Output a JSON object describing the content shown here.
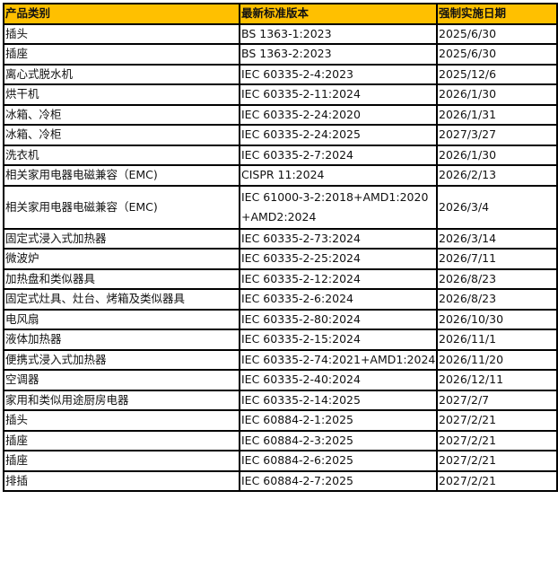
{
  "header": {
    "category": "产品类别",
    "standard": "最新标准版本",
    "date": "强制实施日期",
    "header_color": "#ffc000"
  },
  "rows": [
    {
      "category": "插头",
      "standard": "BS 1363-1:2023",
      "date": "2025/6/30"
    },
    {
      "category": "插座",
      "standard": "BS 1363-2:2023",
      "date": "2025/6/30"
    },
    {
      "category": "离心式脱水机",
      "standard": "IEC 60335-2-4:2023",
      "date": "2025/12/6"
    },
    {
      "category": "烘干机",
      "standard": "IEC 60335-2-11:2024",
      "date": "2026/1/30"
    },
    {
      "category": "冰箱、冷柜",
      "standard": "IEC 60335-2-24:2020",
      "date": "2026/1/31"
    },
    {
      "category": "冰箱、冷柜",
      "standard": "IEC 60335-2-24:2025",
      "date": "2027/3/27"
    },
    {
      "category": "洗衣机",
      "standard": "IEC 60335-2-7:2024",
      "date": "2026/1/30"
    },
    {
      "category": "相关家用电器电磁兼容（EMC)",
      "standard": "CISPR 11:2024",
      "date": "2026/2/13"
    },
    {
      "category": "相关家用电器电磁兼容（EMC)",
      "standard": "IEC 61000-3-2:2018+AMD1:2020+AMD2:2024",
      "date": "2026/3/4"
    },
    {
      "category": "固定式浸入式加热器",
      "standard": "IEC 60335-2-73:2024",
      "date": "2026/3/14"
    },
    {
      "category": "微波炉",
      "standard": "IEC 60335-2-25:2024",
      "date": "2026/7/11"
    },
    {
      "category": "加热盘和类似器具",
      "standard": "IEC 60335-2-12:2024",
      "date": "2026/8/23"
    },
    {
      "category": "固定式灶具、灶台、烤箱及类似器具",
      "standard": "IEC 60335-2-6:2024",
      "date": "2026/8/23"
    },
    {
      "category": "电风扇",
      "standard": "IEC 60335-2-80:2024",
      "date": "2026/10/30"
    },
    {
      "category": "液体加热器",
      "standard": "IEC 60335-2-15:2024",
      "date": "2026/11/1"
    },
    {
      "category": "便携式浸入式加热器",
      "standard": "IEC 60335-2-74:2021+AMD1:2024",
      "date": "2026/11/20"
    },
    {
      "category": "空调器",
      "standard": "IEC 60335-2-40:2024",
      "date": "2026/12/11"
    },
    {
      "category": "家用和类似用途厨房电器",
      "standard": "IEC 60335-2-14:2025",
      "date": "2027/2/7"
    },
    {
      "category": "插头",
      "standard": "IEC 60884-2-1:2025",
      "date": "2027/2/21"
    },
    {
      "category": "插座",
      "standard": "IEC 60884-2-3:2025",
      "date": "2027/2/21"
    },
    {
      "category": "插座",
      "standard": "IEC 60884-2-6:2025",
      "date": "2027/2/21"
    },
    {
      "category": "排插",
      "standard": "IEC 60884-2-7:2025",
      "date": "2027/2/21"
    }
  ]
}
